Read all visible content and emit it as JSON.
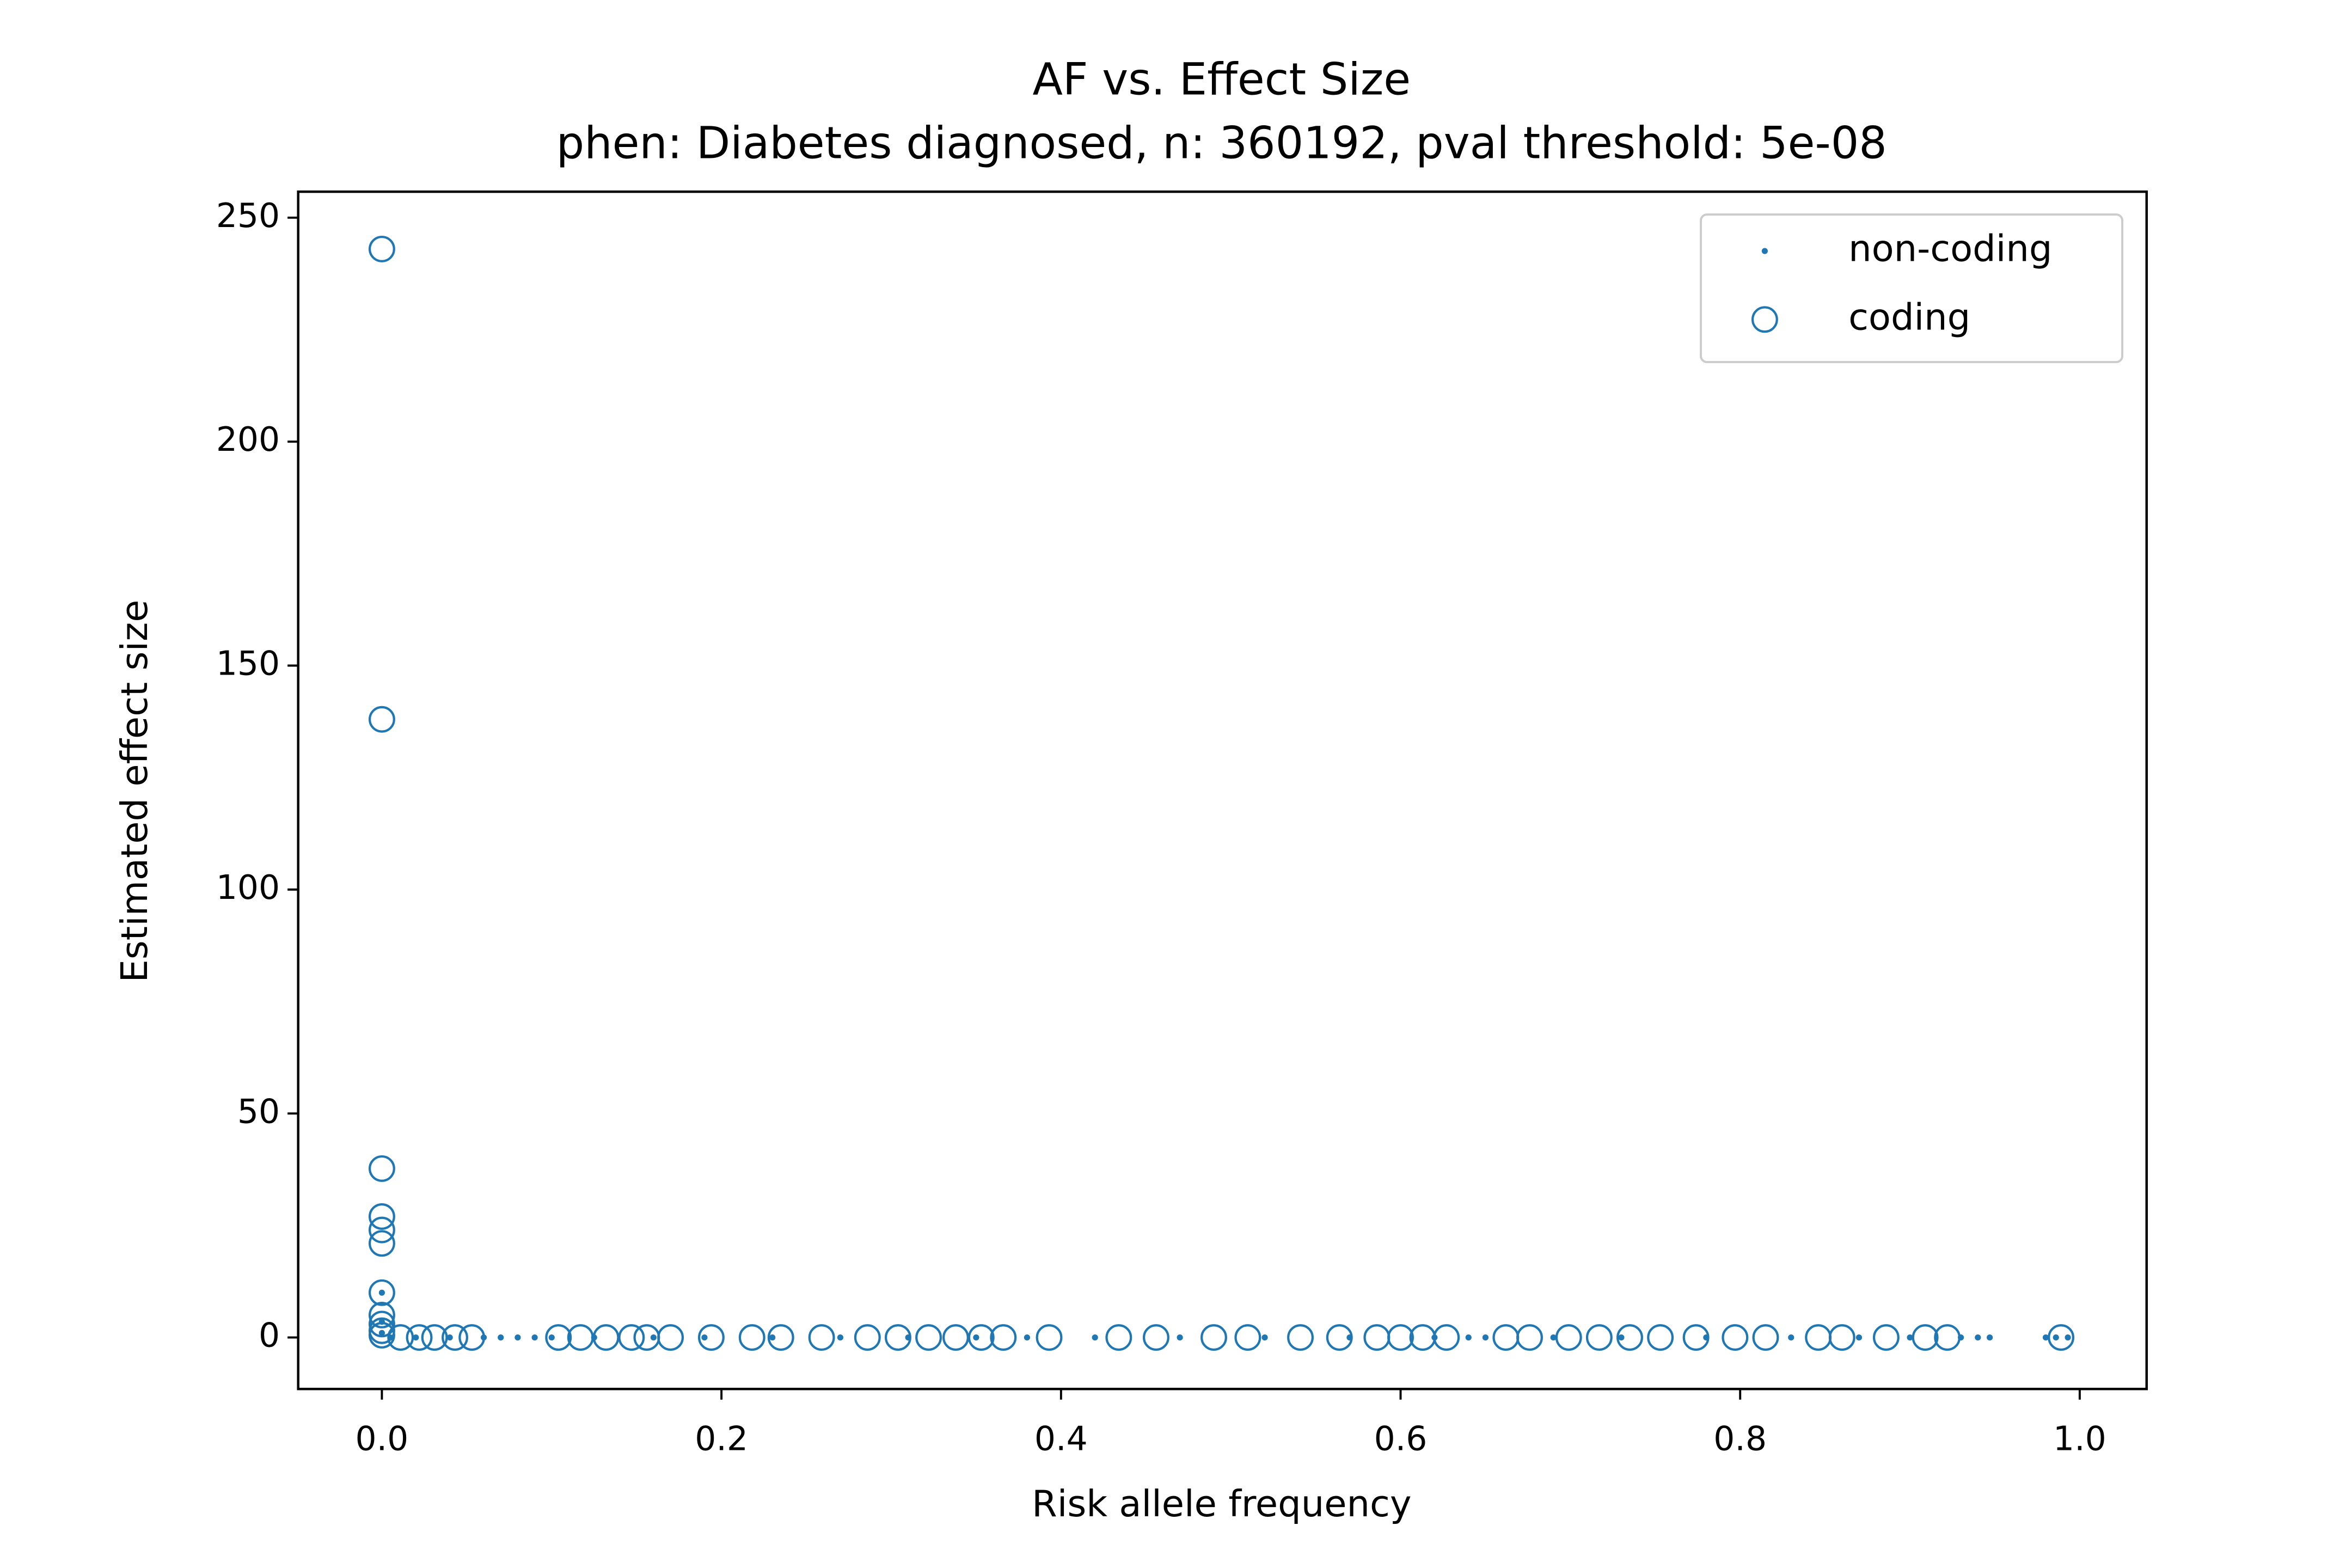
{
  "chart_data": {
    "type": "scatter",
    "title": "AF vs. Effect Size",
    "subtitle": "phen: Diabetes diagnosed, n: 360192, pval threshold: 5e-08",
    "x_label": "Risk allele frequency",
    "y_label": "Estimated effect size",
    "xlim": [
      -0.0493,
      1.0394
    ],
    "ylim": [
      -11.5,
      255.8
    ],
    "xticks": [
      {
        "value": 0,
        "label": "0.0"
      },
      0.2,
      0.4,
      0.6,
      0.8,
      {
        "value": 1,
        "label": "1.0"
      }
    ],
    "yticks": [
      0,
      50,
      100,
      150,
      200,
      250
    ],
    "grid": false,
    "legend": "upper right",
    "series": [
      {
        "name": "non-coding",
        "color": "#1f77b4",
        "marker": "dot",
        "x": [
          0,
          0,
          0,
          0.005,
          0.02,
          0.04,
          0.06,
          0.07,
          0.08,
          0.09,
          0.1,
          0.125,
          0.16,
          0.19,
          0.23,
          0.27,
          0.31,
          0.35,
          0.38,
          0.42,
          0.47,
          0.52,
          0.57,
          0.62,
          0.64,
          0.65,
          0.69,
          0.73,
          0.78,
          0.83,
          0.87,
          0.9,
          0.93,
          0.94,
          0.947,
          0.98,
          0.986,
          0.993
        ],
        "values": [
          10,
          3.5,
          1,
          0,
          0,
          0,
          0,
          0,
          0,
          0,
          0,
          0,
          0,
          0,
          0,
          0,
          0,
          0,
          0,
          0,
          0,
          0,
          0,
          0,
          0,
          0,
          0,
          0,
          0,
          0,
          0,
          0,
          0,
          0,
          0,
          0,
          0,
          0
        ]
      },
      {
        "name": "coding",
        "color": "#1f77b4",
        "marker": "circle",
        "x": [
          0,
          0,
          0,
          0,
          0,
          0,
          0,
          0,
          0,
          0,
          0,
          0.011,
          0.022,
          0.031,
          0.043,
          0.053,
          0.104,
          0.117,
          0.132,
          0.147,
          0.156,
          0.17,
          0.194,
          0.218,
          0.235,
          0.259,
          0.286,
          0.304,
          0.322,
          0.338,
          0.353,
          0.366,
          0.393,
          0.434,
          0.456,
          0.49,
          0.51,
          0.541,
          0.564,
          0.586,
          0.6,
          0.613,
          0.627,
          0.662,
          0.676,
          0.699,
          0.717,
          0.735,
          0.753,
          0.774,
          0.797,
          0.815,
          0.846,
          0.86,
          0.886,
          0.909,
          0.922,
          0.989
        ],
        "values": [
          243,
          138,
          37.7,
          27,
          24,
          21,
          10,
          5,
          3,
          1.5,
          0.5,
          0,
          0,
          0,
          0,
          0,
          0,
          0,
          0,
          0,
          0,
          0,
          0,
          0,
          0,
          0,
          0,
          0,
          0,
          0,
          0,
          0,
          0,
          0,
          0,
          0,
          0,
          0,
          0,
          0,
          0,
          0,
          0,
          0,
          0,
          0,
          0,
          0,
          0,
          0,
          0,
          0,
          0,
          0,
          0,
          0,
          0,
          0
        ]
      }
    ]
  }
}
